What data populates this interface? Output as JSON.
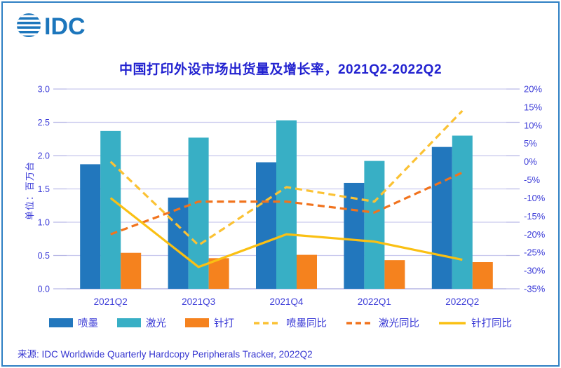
{
  "page": {
    "logo_text": "IDC",
    "title": "中国打印外设市场出货量及增长率，2021Q2-2022Q2",
    "unit_label": "单位：百万台",
    "source": "来源: IDC Worldwide Quarterly Hardcopy Peripherals Tracker, 2022Q2"
  },
  "colors": {
    "chrome_border": "#2F80C4",
    "logo_blue": "#1C76BC",
    "title_text": "#2222D0",
    "axis_text": "#3C3CD8",
    "legend_text": "#3A3AD6",
    "source_text": "#3434D0",
    "gridline": "#CACAEE",
    "axis_line": "#B9B9E6"
  },
  "chart_data": {
    "type": "bar",
    "subtype": "grouped-bars-with-yoy-lines-dual-axis",
    "title": "中国打印外设市场出货量及增长率，2021Q2-2022Q2",
    "categories": [
      "2021Q2",
      "2021Q3",
      "2021Q4",
      "2022Q1",
      "2022Q2"
    ],
    "bar_series": [
      {
        "name": "喷墨",
        "color": "#2277BD",
        "axis": "left",
        "values": [
          1.87,
          1.37,
          1.9,
          1.59,
          2.13
        ]
      },
      {
        "name": "激光",
        "color": "#38AFC5",
        "axis": "left",
        "values": [
          2.37,
          2.27,
          2.53,
          1.92,
          2.3
        ]
      },
      {
        "name": "针打",
        "color": "#F5821E",
        "axis": "left",
        "values": [
          0.54,
          0.46,
          0.51,
          0.43,
          0.4
        ]
      }
    ],
    "line_series": [
      {
        "name": "喷墨同比",
        "color": "#FBC234",
        "style": "dashed",
        "axis": "right",
        "values": [
          0,
          -23,
          -7,
          -11,
          14
        ]
      },
      {
        "name": "激光同比",
        "color": "#F1731D",
        "style": "dashed",
        "axis": "right",
        "values": [
          -20,
          -11,
          -11,
          -14,
          -3
        ]
      },
      {
        "name": "针打同比",
        "color": "#FAC013",
        "style": "solid",
        "axis": "right",
        "values": [
          -10,
          -29,
          -20,
          -22,
          -27
        ]
      }
    ],
    "left_axis": {
      "label": "单位：百万台",
      "min": 0,
      "max": 3,
      "step": 0.5,
      "ticks": [
        "0.0",
        "0.5",
        "1.0",
        "1.5",
        "2.0",
        "2.5",
        "3.0"
      ]
    },
    "right_axis": {
      "unit": "%",
      "min": -35,
      "max": 20,
      "step": 5,
      "ticks": [
        "-35%",
        "-30%",
        "-25%",
        "-20%",
        "-15%",
        "-10%",
        "-5%",
        "0%",
        "5%",
        "10%",
        "15%",
        "20%"
      ]
    },
    "legend_position": "bottom",
    "grid": "horizontal-only"
  }
}
